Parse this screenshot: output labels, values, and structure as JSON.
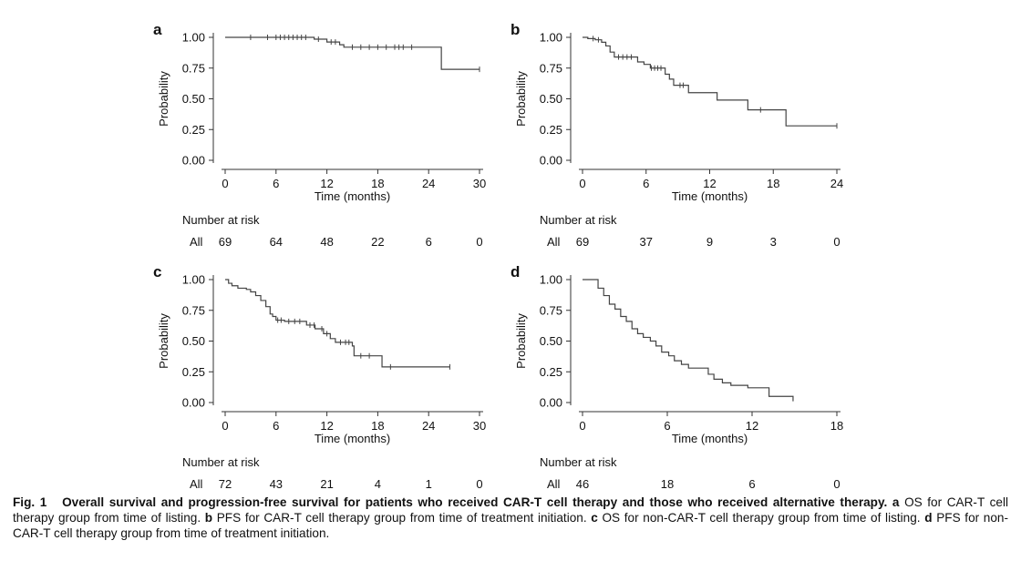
{
  "chart_data": [
    {
      "type": "line",
      "panel": "a",
      "ylabel": "Probability",
      "xlabel": "Time (months)",
      "xlim": [
        0,
        30
      ],
      "ylim": [
        0,
        1
      ],
      "xticks": [
        0,
        6,
        12,
        18,
        24,
        30
      ],
      "yticks": [
        "0.00",
        "0.25",
        "0.50",
        "0.75",
        "1.00"
      ],
      "curve": [
        [
          0,
          1.0
        ],
        [
          9.5,
          1.0
        ],
        [
          10.5,
          0.985
        ],
        [
          12,
          0.962
        ],
        [
          13.5,
          0.94
        ],
        [
          14,
          0.92
        ],
        [
          25.5,
          0.92
        ],
        [
          25.5,
          0.74
        ],
        [
          30,
          0.74
        ]
      ],
      "censor_x": [
        3,
        5,
        6,
        6.5,
        7,
        7.5,
        8,
        8.5,
        9,
        9.5,
        11,
        12.5,
        13,
        15,
        16,
        17,
        18,
        19,
        20,
        20.5,
        21,
        22,
        30
      ],
      "risk_label": "Number at risk",
      "risk_group": "All",
      "risk_times": [
        0,
        6,
        12,
        18,
        24,
        30
      ],
      "risk_counts": [
        "69",
        "64",
        "48",
        "22",
        "6",
        "0"
      ]
    },
    {
      "type": "line",
      "panel": "b",
      "ylabel": "Probability",
      "xlabel": "Time (months)",
      "xlim": [
        0,
        24
      ],
      "ylim": [
        0,
        1
      ],
      "xticks": [
        0,
        6,
        12,
        18,
        24
      ],
      "yticks": [
        "0.00",
        "0.25",
        "0.50",
        "0.75",
        "1.00"
      ],
      "curve": [
        [
          0,
          1.0
        ],
        [
          0.5,
          0.99
        ],
        [
          1.2,
          0.98
        ],
        [
          1.8,
          0.96
        ],
        [
          2.2,
          0.93
        ],
        [
          2.6,
          0.88
        ],
        [
          3,
          0.84
        ],
        [
          5.2,
          0.8
        ],
        [
          5.8,
          0.78
        ],
        [
          6.4,
          0.75
        ],
        [
          7.6,
          0.75
        ],
        [
          7.8,
          0.7
        ],
        [
          8.2,
          0.66
        ],
        [
          8.6,
          0.61
        ],
        [
          9.8,
          0.61
        ],
        [
          10,
          0.55
        ],
        [
          12.5,
          0.55
        ],
        [
          12.7,
          0.49
        ],
        [
          15.4,
          0.49
        ],
        [
          15.6,
          0.41
        ],
        [
          19,
          0.41
        ],
        [
          19.2,
          0.28
        ],
        [
          24,
          0.28
        ]
      ],
      "censor_x": [
        1,
        1.5,
        3.4,
        3.8,
        4.2,
        4.6,
        6.5,
        6.8,
        7.1,
        7.4,
        9.2,
        9.5,
        16.8,
        24
      ],
      "risk_label": "Number at risk",
      "risk_group": "All",
      "risk_times": [
        0,
        6,
        12,
        18,
        24
      ],
      "risk_counts": [
        "69",
        "37",
        "9",
        "3",
        "0"
      ]
    },
    {
      "type": "line",
      "panel": "c",
      "ylabel": "Probability",
      "xlabel": "Time (months)",
      "xlim": [
        0,
        30
      ],
      "ylim": [
        0,
        1
      ],
      "xticks": [
        0,
        6,
        12,
        18,
        24,
        30
      ],
      "yticks": [
        "0.00",
        "0.25",
        "0.50",
        "0.75",
        "1.00"
      ],
      "curve": [
        [
          0,
          1.0
        ],
        [
          0.4,
          0.97
        ],
        [
          0.8,
          0.95
        ],
        [
          1.5,
          0.93
        ],
        [
          2.5,
          0.92
        ],
        [
          3,
          0.9
        ],
        [
          3.6,
          0.87
        ],
        [
          4.2,
          0.83
        ],
        [
          4.8,
          0.78
        ],
        [
          5.3,
          0.72
        ],
        [
          5.6,
          0.7
        ],
        [
          6,
          0.67
        ],
        [
          7,
          0.66
        ],
        [
          9.3,
          0.66
        ],
        [
          9.6,
          0.63
        ],
        [
          10.6,
          0.6
        ],
        [
          11.6,
          0.56
        ],
        [
          12.4,
          0.52
        ],
        [
          13,
          0.49
        ],
        [
          15,
          0.46
        ],
        [
          15.2,
          0.38
        ],
        [
          18.2,
          0.38
        ],
        [
          18.5,
          0.29
        ],
        [
          26.5,
          0.29
        ]
      ],
      "censor_x": [
        6.2,
        6.6,
        7.5,
        8.2,
        8.8,
        10,
        10.5,
        11.4,
        12,
        13.6,
        14.2,
        14.6,
        16,
        17,
        19.5,
        26.5
      ],
      "risk_label": "Number at risk",
      "risk_group": "All",
      "risk_times": [
        0,
        6,
        12,
        18,
        24,
        30
      ],
      "risk_counts": [
        "72",
        "43",
        "21",
        "4",
        "1",
        "0"
      ]
    },
    {
      "type": "line",
      "panel": "d",
      "ylabel": "Probability",
      "xlabel": "Time (months)",
      "xlim": [
        0,
        18
      ],
      "ylim": [
        0,
        1
      ],
      "xticks": [
        0,
        6,
        12,
        18
      ],
      "yticks": [
        "0.00",
        "0.25",
        "0.50",
        "0.75",
        "1.00"
      ],
      "curve": [
        [
          0,
          1.0
        ],
        [
          0.8,
          1.0
        ],
        [
          1.1,
          0.93
        ],
        [
          1.5,
          0.87
        ],
        [
          1.9,
          0.8
        ],
        [
          2.3,
          0.76
        ],
        [
          2.7,
          0.7
        ],
        [
          3.1,
          0.66
        ],
        [
          3.5,
          0.6
        ],
        [
          3.9,
          0.56
        ],
        [
          4.3,
          0.53
        ],
        [
          4.8,
          0.5
        ],
        [
          5.2,
          0.46
        ],
        [
          5.6,
          0.41
        ],
        [
          6.1,
          0.38
        ],
        [
          6.5,
          0.34
        ],
        [
          7,
          0.31
        ],
        [
          7.5,
          0.28
        ],
        [
          8.5,
          0.28
        ],
        [
          8.9,
          0.23
        ],
        [
          9.3,
          0.19
        ],
        [
          9.9,
          0.16
        ],
        [
          10.5,
          0.14
        ],
        [
          11.5,
          0.14
        ],
        [
          11.7,
          0.12
        ],
        [
          13,
          0.12
        ],
        [
          13.2,
          0.05
        ],
        [
          14.7,
          0.05
        ],
        [
          14.9,
          0.01
        ]
      ],
      "censor_x": [],
      "risk_label": "Number at risk",
      "risk_group": "All",
      "risk_times": [
        0,
        6,
        12,
        18
      ],
      "risk_counts": [
        "46",
        "18",
        "6",
        "0"
      ]
    }
  ],
  "caption": {
    "label": "Fig. 1",
    "title": "Overall survival and progression-free survival for patients who received CAR-T cell therapy and those who received alternative therapy.",
    "parts": [
      {
        "letter": "a",
        "text": "OS for CAR-T cell therapy group from time of listing."
      },
      {
        "letter": "b",
        "text": "PFS for CAR-T cell therapy group from time of treatment initiation."
      },
      {
        "letter": "c",
        "text": "OS for non-CAR-T cell therapy group from time of listing."
      },
      {
        "letter": "d",
        "text": "PFS for non-CAR-T cell therapy group from time of treatment initiation."
      }
    ]
  }
}
